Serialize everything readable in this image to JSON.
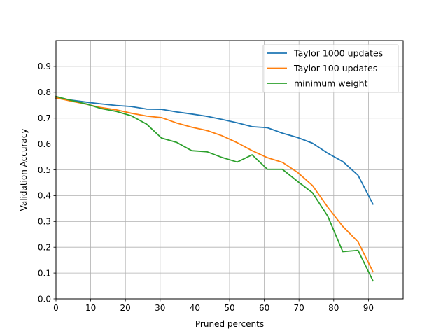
{
  "chart_data": {
    "type": "line",
    "title": "",
    "xlabel": "Pruned percents",
    "ylabel": "Validation Accuracy",
    "xlim": [
      0,
      100
    ],
    "ylim": [
      0,
      1.0
    ],
    "xticks": [
      0,
      10,
      20,
      30,
      40,
      50,
      60,
      70,
      80,
      90
    ],
    "yticks": [
      0.0,
      0.1,
      0.2,
      0.3,
      0.4,
      0.5,
      0.6,
      0.7,
      0.8,
      0.9
    ],
    "xtick_labels": [
      "0",
      "10",
      "20",
      "30",
      "40",
      "50",
      "60",
      "70",
      "80",
      "90"
    ],
    "ytick_labels": [
      "0.0",
      "0.1",
      "0.2",
      "0.3",
      "0.4",
      "0.5",
      "0.6",
      "0.7",
      "0.8",
      "0.9"
    ],
    "grid": true,
    "legend_position": "top-right",
    "series": [
      {
        "name": "Taylor 1000 updates",
        "color": "#1f77b4",
        "x": [
          0,
          4.3,
          8.7,
          13,
          17.4,
          21.7,
          26.1,
          30.4,
          34.8,
          39.1,
          43.5,
          47.8,
          52.2,
          56.5,
          60.9,
          65.2,
          69.6,
          73.9,
          78.3,
          82.6,
          87,
          91.3
        ],
        "y": [
          0.777,
          0.77,
          0.762,
          0.755,
          0.749,
          0.745,
          0.735,
          0.734,
          0.724,
          0.716,
          0.707,
          0.695,
          0.682,
          0.667,
          0.663,
          0.642,
          0.625,
          0.603,
          0.564,
          0.532,
          0.479,
          0.367
        ]
      },
      {
        "name": "Taylor 100 updates",
        "color": "#ff7f0e",
        "x": [
          0,
          4.3,
          8.7,
          13,
          17.4,
          21.7,
          26.1,
          30.4,
          34.8,
          39.1,
          43.5,
          47.8,
          52.2,
          56.5,
          60.9,
          65.2,
          69.6,
          73.9,
          78.3,
          82.6,
          87,
          91.3
        ],
        "y": [
          0.779,
          0.766,
          0.754,
          0.741,
          0.732,
          0.719,
          0.708,
          0.702,
          0.681,
          0.665,
          0.652,
          0.632,
          0.605,
          0.574,
          0.547,
          0.529,
          0.49,
          0.439,
          0.355,
          0.281,
          0.221,
          0.105
        ]
      },
      {
        "name": "minimum weight",
        "color": "#2ca02c",
        "x": [
          0,
          4.3,
          8.7,
          13,
          17.4,
          21.7,
          26.1,
          30.4,
          34.8,
          39.1,
          43.5,
          47.8,
          52.2,
          56.5,
          60.9,
          65.2,
          69.6,
          73.9,
          78.3,
          82.6,
          87,
          91.3
        ],
        "y": [
          0.784,
          0.769,
          0.755,
          0.737,
          0.726,
          0.709,
          0.677,
          0.623,
          0.606,
          0.574,
          0.57,
          0.548,
          0.53,
          0.558,
          0.502,
          0.502,
          0.455,
          0.411,
          0.32,
          0.183,
          0.188,
          0.07
        ]
      }
    ]
  }
}
